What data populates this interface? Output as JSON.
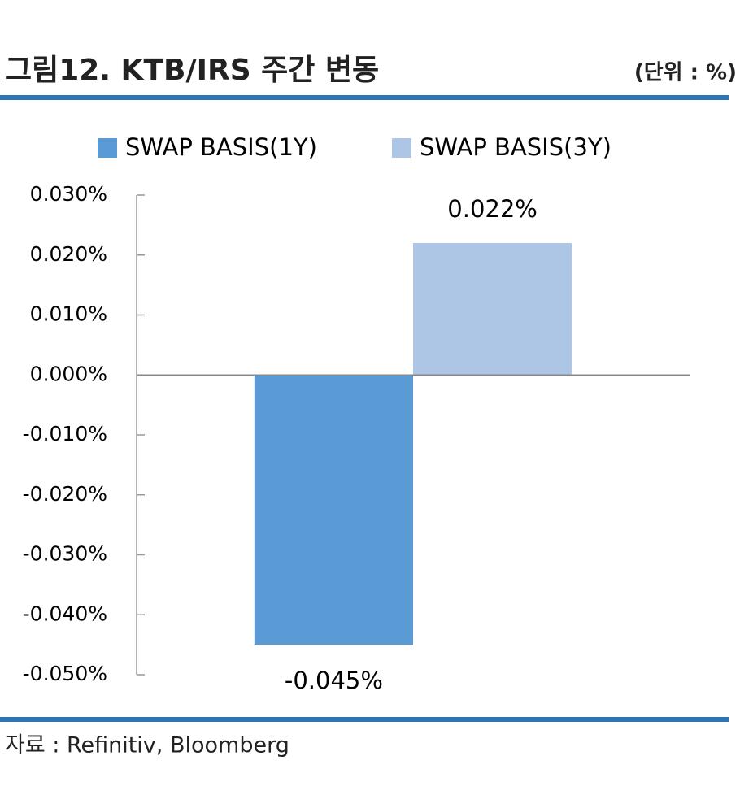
{
  "chart_data": {
    "type": "bar",
    "title": "그림12. KTB/IRS 주간 변동",
    "unit_label": "(단위 : %)",
    "source": "자료 : Refinitiv, Bloomberg",
    "categories": [
      null
    ],
    "series": [
      {
        "name": "SWAP BASIS(1Y)",
        "color": "#5b9bd5",
        "values": [
          -0.045
        ],
        "value_labels": [
          "-0.045%"
        ]
      },
      {
        "name": "SWAP BASIS(3Y)",
        "color": "#adc6e5",
        "values": [
          0.022
        ],
        "value_labels": [
          "0.022%"
        ]
      }
    ],
    "ylim": [
      -0.05,
      0.03
    ],
    "yticks": [
      {
        "value": 0.03,
        "label": "0.030%"
      },
      {
        "value": 0.02,
        "label": "0.020%"
      },
      {
        "value": 0.01,
        "label": "0.010%"
      },
      {
        "value": 0,
        "label": "0.000%"
      },
      {
        "value": -0.01,
        "label": "-0.010%"
      },
      {
        "value": -0.02,
        "label": "-0.020%"
      },
      {
        "value": -0.03,
        "label": "-0.030%"
      },
      {
        "value": -0.04,
        "label": "-0.040%"
      },
      {
        "value": -0.05,
        "label": "-0.050%"
      }
    ],
    "legend": "top"
  }
}
